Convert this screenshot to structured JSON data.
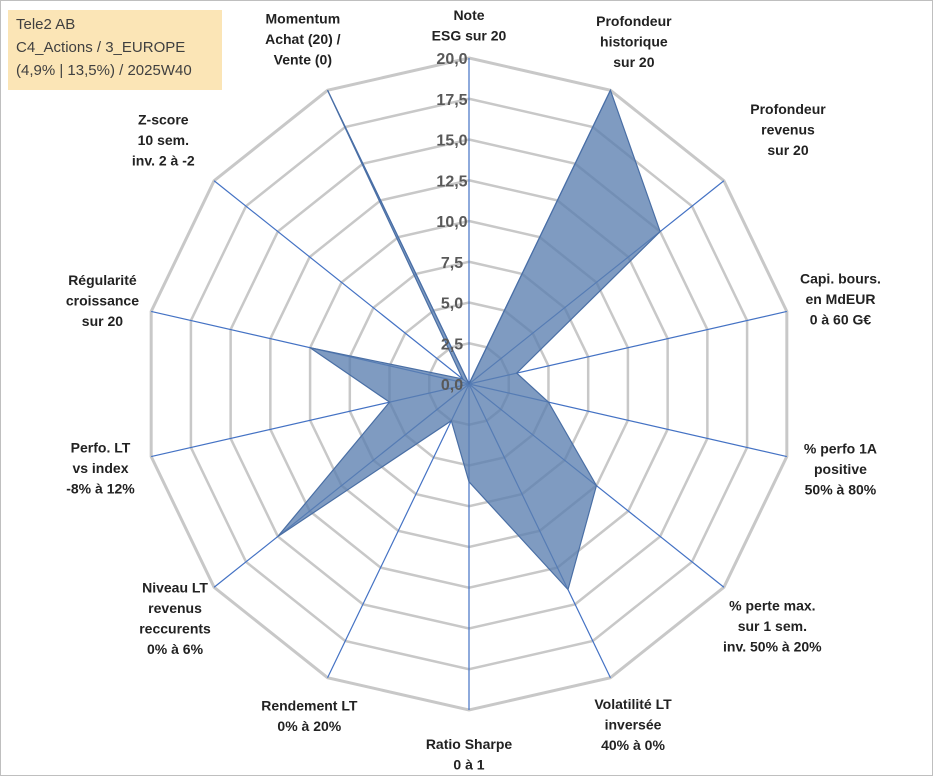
{
  "info": {
    "line1": "Tele2 AB",
    "line2": "C4_Actions / 3_EUROPE",
    "line3": "(4,9% | 13,5%) / 2025W40"
  },
  "colors": {
    "grid": "#c8c8c8",
    "spoke": "#4472c4",
    "fill": "#5b7fb0",
    "fill_stroke": "#4a6fa5",
    "info_bg": "#fbe5b6"
  },
  "chart_data": {
    "type": "radar",
    "title": "",
    "rmin": 0,
    "rmax": 20,
    "tick_labels": [
      "0,0",
      "2,5",
      "5,0",
      "7,5",
      "10,0",
      "12,5",
      "15,0",
      "17,5",
      "20,0"
    ],
    "axes": [
      {
        "lines": [
          "Note",
          "ESG sur 20"
        ]
      },
      {
        "lines": [
          "Profondeur",
          "historique",
          "sur 20"
        ]
      },
      {
        "lines": [
          "Profondeur",
          "revenus",
          "sur 20"
        ]
      },
      {
        "lines": [
          "Capi. bours.",
          "en MdEUR",
          "0 à 60 G€"
        ]
      },
      {
        "lines": [
          "% perfo 1A",
          "positive",
          "50% à 80%"
        ]
      },
      {
        "lines": [
          "% perte max.",
          "sur 1 sem.",
          "inv. 50% à 20%"
        ]
      },
      {
        "lines": [
          "Volatilité LT",
          "inversée",
          "40% à 0%"
        ]
      },
      {
        "lines": [
          "Ratio Sharpe",
          "0 à 1"
        ]
      },
      {
        "lines": [
          "Rendement LT",
          "0% à 20%"
        ]
      },
      {
        "lines": [
          "Niveau LT",
          "revenus",
          "reccurents",
          "0% à 6%"
        ]
      },
      {
        "lines": [
          "Perfo. LT",
          "vs index",
          "-8% à 12%"
        ]
      },
      {
        "lines": [
          "Régularité",
          "croissance",
          "sur 20"
        ]
      },
      {
        "lines": [
          "Z-score",
          "10 sem.",
          "inv. 2 à -2"
        ]
      },
      {
        "lines": [
          "Momentum",
          "Achat (20) /",
          "Vente (0)"
        ]
      }
    ],
    "series": [
      {
        "name": "Tele2 AB",
        "values": [
          0,
          20,
          15,
          3,
          5,
          10,
          14,
          6,
          2.5,
          15,
          5,
          10,
          0.5,
          20
        ]
      }
    ]
  }
}
